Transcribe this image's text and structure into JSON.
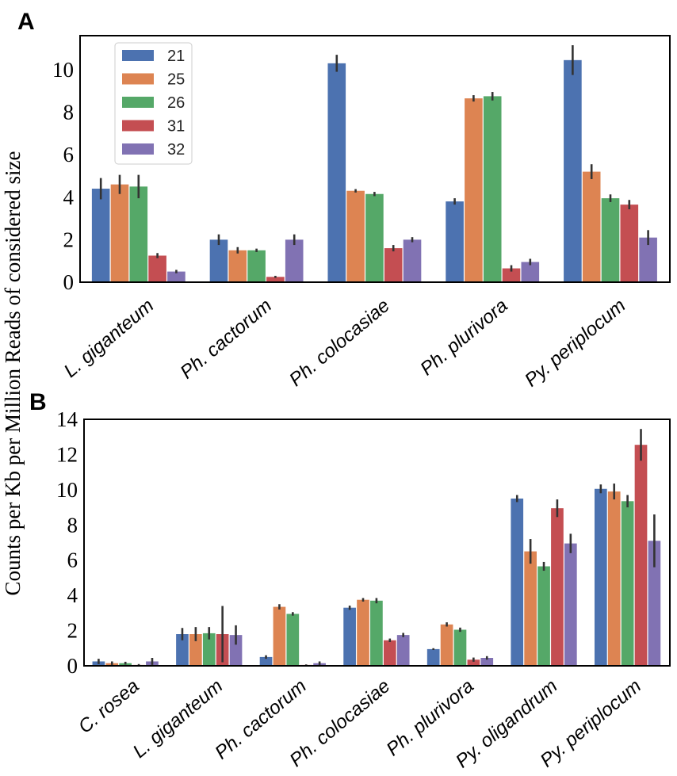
{
  "figure": {
    "ylabel": "Counts per Kb per Million Reads of considered size"
  },
  "series_colors": {
    "21": "#4c72b0",
    "25": "#dd8452",
    "26": "#55a868",
    "31": "#c44e52",
    "32": "#8172b3"
  },
  "chart_data": [
    {
      "panel": "A",
      "type": "bar",
      "title": "",
      "xlabel": "",
      "ylabel": "Counts per Kb per Million Reads of considered size",
      "ylim": [
        0,
        11.6
      ],
      "yticks": [
        0,
        2,
        4,
        6,
        8,
        10
      ],
      "legend": {
        "placement": "top-left",
        "entries": [
          "21",
          "25",
          "26",
          "31",
          "32"
        ]
      },
      "categories": [
        "L. giganteum",
        "Ph. cactorum",
        "Ph. colocasiae",
        "Ph. plurivora",
        "Py. periplocum"
      ],
      "series": [
        {
          "name": "21",
          "values": [
            4.4,
            2.0,
            10.3,
            3.8,
            10.45
          ],
          "err": [
            0.5,
            0.25,
            0.4,
            0.15,
            0.7
          ]
        },
        {
          "name": "25",
          "values": [
            4.6,
            1.5,
            4.3,
            8.65,
            5.2
          ],
          "err": [
            0.45,
            0.15,
            0.08,
            0.15,
            0.35
          ]
        },
        {
          "name": "26",
          "values": [
            4.5,
            1.5,
            4.15,
            8.75,
            3.95
          ],
          "err": [
            0.55,
            0.08,
            0.1,
            0.2,
            0.18
          ]
        },
        {
          "name": "31",
          "values": [
            1.25,
            0.25,
            1.6,
            0.65,
            3.65
          ],
          "err": [
            0.12,
            0.05,
            0.15,
            0.15,
            0.22
          ]
        },
        {
          "name": "32",
          "values": [
            0.5,
            2.0,
            2.0,
            0.95,
            2.1
          ],
          "err": [
            0.08,
            0.25,
            0.12,
            0.15,
            0.35
          ]
        }
      ]
    },
    {
      "panel": "B",
      "type": "bar",
      "title": "",
      "xlabel": "",
      "ylabel": "Counts per Kb per Million Reads of considered size",
      "ylim": [
        0,
        14
      ],
      "yticks": [
        0,
        2,
        4,
        6,
        8,
        10,
        12,
        14
      ],
      "categories": [
        "C. rosea",
        "L. giganteum",
        "Ph. cactorum",
        "Ph. colocasiae",
        "Ph. plurivora",
        "Py. oligandrum",
        "Py. periplocum"
      ],
      "series": [
        {
          "name": "21",
          "values": [
            0.25,
            1.8,
            0.5,
            3.3,
            0.95,
            9.5,
            10.05
          ],
          "err": [
            0.15,
            0.35,
            0.1,
            0.12,
            0.05,
            0.2,
            0.25
          ]
        },
        {
          "name": "25",
          "values": [
            0.15,
            1.8,
            3.35,
            3.75,
            2.35,
            6.5,
            9.9
          ],
          "err": [
            0.1,
            0.4,
            0.15,
            0.1,
            0.12,
            0.7,
            0.45
          ]
        },
        {
          "name": "26",
          "values": [
            0.15,
            1.85,
            2.95,
            3.7,
            2.05,
            5.65,
            9.35
          ],
          "err": [
            0.08,
            0.35,
            0.1,
            0.15,
            0.12,
            0.25,
            0.35
          ]
        },
        {
          "name": "31",
          "values": [
            0.05,
            1.8,
            0.05,
            1.45,
            0.35,
            8.95,
            12.55
          ],
          "err": [
            0.05,
            1.6,
            0.03,
            0.1,
            0.12,
            0.5,
            0.9
          ]
        },
        {
          "name": "32",
          "values": [
            0.25,
            1.75,
            0.15,
            1.75,
            0.45,
            6.95,
            7.1
          ],
          "err": [
            0.2,
            0.55,
            0.1,
            0.12,
            0.1,
            0.55,
            1.5
          ]
        }
      ]
    }
  ]
}
